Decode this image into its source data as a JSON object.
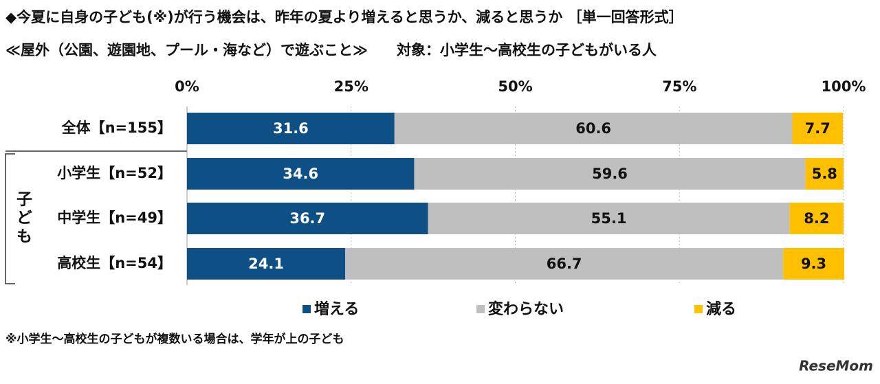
{
  "chart_data": {
    "type": "stacked-bar-horizontal",
    "title": "◆今夏に自身の子ども(※)が行う機会は、昨年の夏より増えると思うか、減ると思うか ［単一回答形式］",
    "subtitle": "≪屋外（公園、遊園地、プール・海など）で遊ぶこと≫　　対象：小学生～高校生の子どもがいる人",
    "categories": [
      "全体【n=155】",
      "小学生【n=52】",
      "中学生【n=49】",
      "高校生【n=54】"
    ],
    "group_label": "子ども",
    "series": [
      {
        "name": "増える",
        "color": "#0e4f86",
        "values": [
          31.6,
          34.6,
          36.7,
          24.1
        ]
      },
      {
        "name": "変わらない",
        "color": "#bfbfbf",
        "values": [
          60.6,
          59.6,
          55.1,
          66.7
        ]
      },
      {
        "name": "減る",
        "color": "#ffc000",
        "values": [
          7.7,
          5.8,
          8.2,
          9.3
        ]
      }
    ],
    "xlim": [
      0,
      100
    ],
    "xticks": [
      {
        "value": 0,
        "label": "0%"
      },
      {
        "value": 25,
        "label": "25%"
      },
      {
        "value": 50,
        "label": "50%"
      },
      {
        "value": 75,
        "label": "75%"
      },
      {
        "value": 100,
        "label": "100%"
      }
    ],
    "grid": true,
    "legend": "bottom",
    "footnote": "※小学生～高校生の子どもが複数いる場合は、学年が上の子ども",
    "watermark": "ReseMom"
  }
}
